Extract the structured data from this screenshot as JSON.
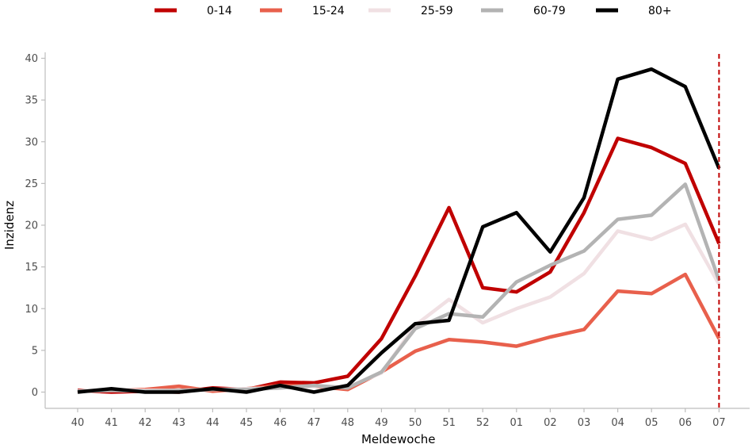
{
  "chart_data": {
    "type": "line",
    "xlabel": "Meldewoche",
    "ylabel": "Inzidenz",
    "ylim": [
      0,
      40
    ],
    "yticks": [
      0,
      5,
      10,
      15,
      20,
      25,
      30,
      35,
      40
    ],
    "categories": [
      "40",
      "41",
      "42",
      "43",
      "44",
      "45",
      "46",
      "47",
      "48",
      "49",
      "50",
      "51",
      "52",
      "01",
      "02",
      "03",
      "04",
      "05",
      "06",
      "07"
    ],
    "legend_position": "top",
    "grid": false,
    "current_week_marker": "07",
    "series": [
      {
        "name": "0-14",
        "color": "#c00000",
        "values": [
          0.2,
          0.0,
          0.1,
          0.0,
          0.5,
          0.3,
          1.2,
          1.1,
          1.9,
          6.4,
          13.9,
          22.1,
          12.5,
          12.0,
          14.4,
          21.5,
          30.4,
          29.3,
          27.4,
          17.8
        ]
      },
      {
        "name": "15-24",
        "color": "#e8604c",
        "values": [
          0.1,
          0.2,
          0.3,
          0.7,
          0.1,
          0.4,
          0.8,
          0.7,
          0.3,
          2.4,
          4.9,
          6.3,
          6.0,
          5.5,
          6.6,
          7.5,
          12.1,
          11.8,
          14.1,
          6.4
        ]
      },
      {
        "name": "25-59",
        "color": "#f0e0e3",
        "values": [
          0.1,
          0.3,
          0.2,
          0.2,
          0.3,
          0.4,
          0.5,
          0.7,
          0.6,
          2.3,
          8.0,
          11.1,
          8.3,
          10.0,
          11.4,
          14.2,
          19.3,
          18.3,
          20.1,
          12.9
        ]
      },
      {
        "name": "60-79",
        "color": "#b3b3b3",
        "values": [
          0.1,
          0.2,
          0.1,
          0.2,
          0.3,
          0.3,
          0.5,
          0.8,
          0.5,
          2.4,
          7.6,
          9.4,
          9.0,
          13.2,
          15.2,
          16.9,
          20.7,
          21.2,
          24.9,
          13.4
        ]
      },
      {
        "name": "80+",
        "color": "#000000",
        "values": [
          0.0,
          0.4,
          0.0,
          0.0,
          0.4,
          0.0,
          0.8,
          0.0,
          0.8,
          4.7,
          8.2,
          8.6,
          19.8,
          21.5,
          16.8,
          23.3,
          37.5,
          38.7,
          36.6,
          26.8
        ]
      }
    ]
  }
}
